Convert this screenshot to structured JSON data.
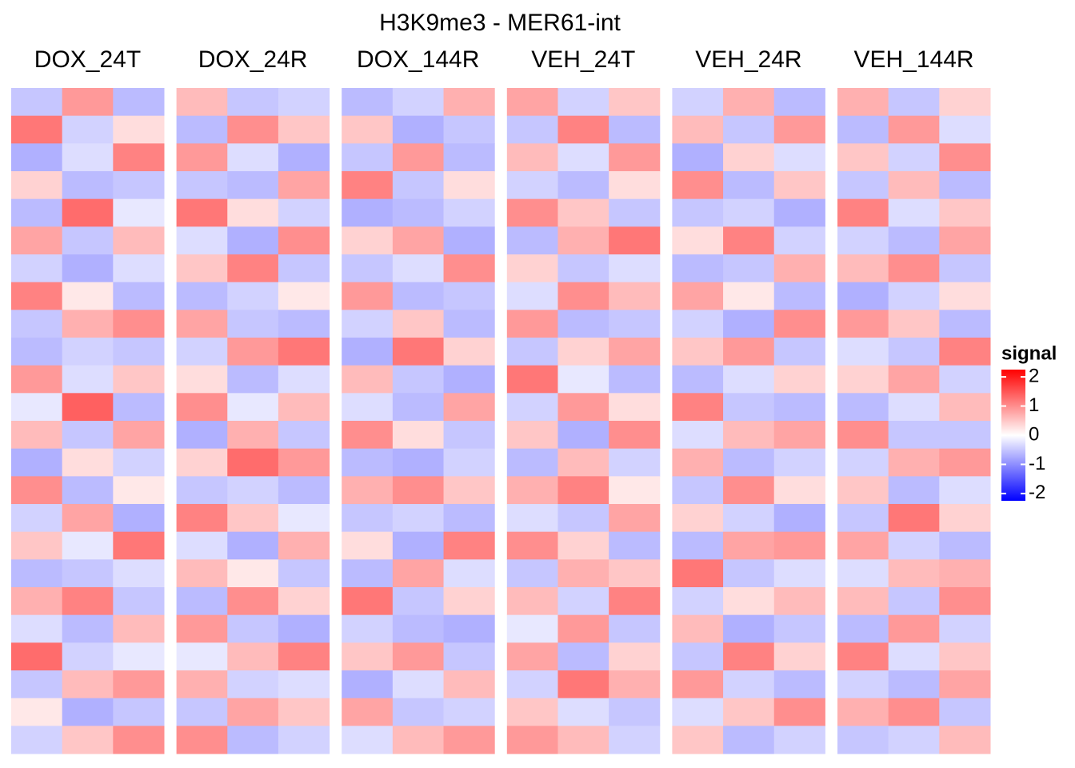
{
  "chart_data": {
    "type": "heatmap",
    "title": "H3K9me3 - MER61-int",
    "legend_title": "signal",
    "colorscale": [
      "#0000ff",
      "#ffffff",
      "#ff0000"
    ],
    "clim": [
      -2.25,
      2.25
    ],
    "cticks": [
      -2,
      -1,
      0,
      1,
      2
    ],
    "panels": [
      {
        "name": "DOX_24T",
        "values": [
          [
            -0.5,
            0.9,
            -0.6
          ],
          [
            1.2,
            -0.4,
            0.3
          ],
          [
            -0.7,
            -0.3,
            1.1
          ],
          [
            0.4,
            -0.6,
            -0.5
          ],
          [
            -0.6,
            1.3,
            -0.2
          ],
          [
            0.8,
            -0.5,
            0.6
          ],
          [
            -0.4,
            -0.7,
            -0.3
          ],
          [
            1.1,
            0.2,
            -0.6
          ],
          [
            -0.5,
            0.7,
            1.0
          ],
          [
            -0.6,
            -0.4,
            -0.5
          ],
          [
            0.9,
            -0.3,
            0.5
          ],
          [
            -0.2,
            1.4,
            -0.6
          ],
          [
            0.6,
            -0.5,
            0.8
          ],
          [
            -0.7,
            0.3,
            -0.4
          ],
          [
            1.0,
            -0.6,
            0.2
          ],
          [
            -0.4,
            0.8,
            -0.7
          ],
          [
            0.5,
            -0.2,
            1.2
          ],
          [
            -0.6,
            -0.5,
            -0.3
          ],
          [
            0.7,
            1.1,
            -0.5
          ],
          [
            -0.3,
            -0.6,
            0.6
          ],
          [
            1.3,
            -0.4,
            -0.2
          ],
          [
            -0.5,
            0.6,
            0.9
          ],
          [
            0.2,
            -0.7,
            -0.5
          ],
          [
            -0.4,
            0.5,
            1.0
          ]
        ]
      },
      {
        "name": "DOX_24R",
        "values": [
          [
            0.6,
            -0.5,
            -0.4
          ],
          [
            -0.6,
            1.0,
            0.5
          ],
          [
            0.9,
            -0.3,
            -0.7
          ],
          [
            -0.5,
            -0.6,
            0.8
          ],
          [
            1.2,
            0.3,
            -0.4
          ],
          [
            -0.3,
            -0.7,
            1.0
          ],
          [
            0.5,
            1.1,
            -0.5
          ],
          [
            -0.6,
            -0.4,
            0.2
          ],
          [
            0.8,
            -0.5,
            -0.6
          ],
          [
            -0.4,
            0.9,
            1.2
          ],
          [
            0.3,
            -0.6,
            -0.3
          ],
          [
            1.0,
            -0.2,
            0.6
          ],
          [
            -0.7,
            0.7,
            -0.5
          ],
          [
            0.4,
            1.3,
            0.9
          ],
          [
            -0.5,
            -0.4,
            -0.6
          ],
          [
            1.1,
            0.5,
            -0.2
          ],
          [
            -0.3,
            -0.7,
            0.7
          ],
          [
            0.6,
            0.2,
            -0.5
          ],
          [
            -0.6,
            1.0,
            0.4
          ],
          [
            0.9,
            -0.5,
            -0.7
          ],
          [
            -0.2,
            0.6,
            1.1
          ],
          [
            0.7,
            -0.4,
            -0.3
          ],
          [
            -0.5,
            0.8,
            0.5
          ],
          [
            1.0,
            -0.6,
            -0.4
          ]
        ]
      },
      {
        "name": "DOX_144R",
        "values": [
          [
            -0.6,
            -0.4,
            0.7
          ],
          [
            0.5,
            -0.7,
            -0.5
          ],
          [
            -0.5,
            0.9,
            -0.6
          ],
          [
            1.1,
            -0.5,
            0.3
          ],
          [
            -0.7,
            -0.6,
            -0.4
          ],
          [
            0.4,
            0.8,
            -0.7
          ],
          [
            -0.5,
            -0.3,
            1.0
          ],
          [
            0.9,
            -0.6,
            -0.5
          ],
          [
            -0.4,
            0.5,
            -0.6
          ],
          [
            -0.7,
            1.2,
            0.4
          ],
          [
            0.6,
            -0.5,
            -0.7
          ],
          [
            -0.3,
            -0.6,
            0.8
          ],
          [
            1.0,
            0.3,
            -0.5
          ],
          [
            -0.6,
            -0.7,
            -0.4
          ],
          [
            0.7,
            1.0,
            0.5
          ],
          [
            -0.5,
            -0.4,
            -0.6
          ],
          [
            0.3,
            -0.7,
            1.1
          ],
          [
            -0.6,
            0.8,
            -0.3
          ],
          [
            1.2,
            -0.5,
            0.4
          ],
          [
            -0.4,
            -0.6,
            -0.7
          ],
          [
            0.5,
            0.9,
            -0.5
          ],
          [
            -0.7,
            -0.3,
            0.6
          ],
          [
            0.8,
            -0.5,
            -0.4
          ],
          [
            -0.3,
            0.6,
            0.9
          ]
        ]
      },
      {
        "name": "VEH_24T",
        "values": [
          [
            0.8,
            -0.4,
            0.5
          ],
          [
            -0.5,
            1.1,
            -0.6
          ],
          [
            0.6,
            -0.3,
            0.9
          ],
          [
            -0.4,
            -0.6,
            0.3
          ],
          [
            1.0,
            0.5,
            -0.5
          ],
          [
            -0.6,
            0.7,
            1.2
          ],
          [
            0.4,
            -0.5,
            -0.3
          ],
          [
            -0.3,
            1.0,
            0.6
          ],
          [
            0.9,
            -0.6,
            -0.5
          ],
          [
            -0.5,
            0.4,
            0.8
          ],
          [
            1.2,
            -0.2,
            -0.6
          ],
          [
            -0.4,
            0.9,
            0.3
          ],
          [
            0.5,
            -0.7,
            1.0
          ],
          [
            -0.6,
            0.6,
            -0.4
          ],
          [
            0.7,
            1.1,
            0.2
          ],
          [
            -0.3,
            -0.5,
            0.8
          ],
          [
            1.0,
            0.4,
            -0.6
          ],
          [
            -0.5,
            0.7,
            0.5
          ],
          [
            0.6,
            -0.4,
            1.1
          ],
          [
            -0.2,
            0.9,
            -0.5
          ],
          [
            0.8,
            -0.6,
            0.4
          ],
          [
            -0.4,
            1.2,
            0.7
          ],
          [
            0.5,
            -0.3,
            -0.5
          ],
          [
            0.9,
            0.6,
            -0.4
          ]
        ]
      },
      {
        "name": "VEH_24R",
        "values": [
          [
            -0.4,
            0.7,
            -0.6
          ],
          [
            0.6,
            -0.5,
            0.9
          ],
          [
            -0.7,
            0.4,
            -0.3
          ],
          [
            1.0,
            -0.6,
            0.5
          ],
          [
            -0.5,
            -0.4,
            -0.7
          ],
          [
            0.3,
            1.1,
            -0.4
          ],
          [
            -0.6,
            -0.5,
            0.7
          ],
          [
            0.8,
            0.2,
            -0.6
          ],
          [
            -0.4,
            -0.7,
            1.0
          ],
          [
            0.5,
            0.9,
            -0.5
          ],
          [
            -0.6,
            -0.3,
            0.4
          ],
          [
            1.1,
            -0.5,
            -0.6
          ],
          [
            -0.3,
            0.6,
            0.8
          ],
          [
            0.7,
            -0.6,
            -0.4
          ],
          [
            -0.5,
            1.0,
            0.3
          ],
          [
            0.4,
            -0.4,
            -0.7
          ],
          [
            -0.6,
            0.8,
            0.9
          ],
          [
            1.2,
            -0.5,
            -0.3
          ],
          [
            -0.4,
            0.3,
            0.6
          ],
          [
            0.6,
            -0.7,
            -0.5
          ],
          [
            -0.5,
            1.1,
            0.4
          ],
          [
            0.9,
            -0.4,
            -0.6
          ],
          [
            -0.3,
            0.5,
            1.0
          ],
          [
            0.5,
            -0.6,
            -0.4
          ]
        ]
      },
      {
        "name": "VEH_144R",
        "values": [
          [
            0.7,
            -0.5,
            0.4
          ],
          [
            -0.6,
            0.9,
            -0.3
          ],
          [
            0.5,
            -0.4,
            1.0
          ],
          [
            -0.5,
            0.6,
            -0.6
          ],
          [
            1.1,
            -0.3,
            0.5
          ],
          [
            -0.4,
            -0.6,
            0.8
          ],
          [
            0.6,
            1.0,
            -0.5
          ],
          [
            -0.7,
            -0.4,
            0.3
          ],
          [
            0.9,
            0.5,
            -0.6
          ],
          [
            -0.3,
            -0.5,
            1.1
          ],
          [
            0.4,
            0.8,
            -0.4
          ],
          [
            -0.6,
            -0.3,
            0.6
          ],
          [
            1.0,
            -0.5,
            -0.5
          ],
          [
            -0.4,
            0.7,
            0.9
          ],
          [
            0.5,
            -0.6,
            -0.3
          ],
          [
            -0.5,
            1.2,
            0.4
          ],
          [
            0.8,
            -0.4,
            -0.6
          ],
          [
            -0.3,
            0.6,
            0.7
          ],
          [
            0.6,
            -0.5,
            1.0
          ],
          [
            -0.6,
            0.9,
            -0.4
          ],
          [
            1.1,
            -0.3,
            0.5
          ],
          [
            -0.4,
            -0.6,
            0.8
          ],
          [
            0.7,
            1.0,
            -0.5
          ],
          [
            -0.5,
            -0.4,
            0.6
          ]
        ]
      }
    ]
  }
}
